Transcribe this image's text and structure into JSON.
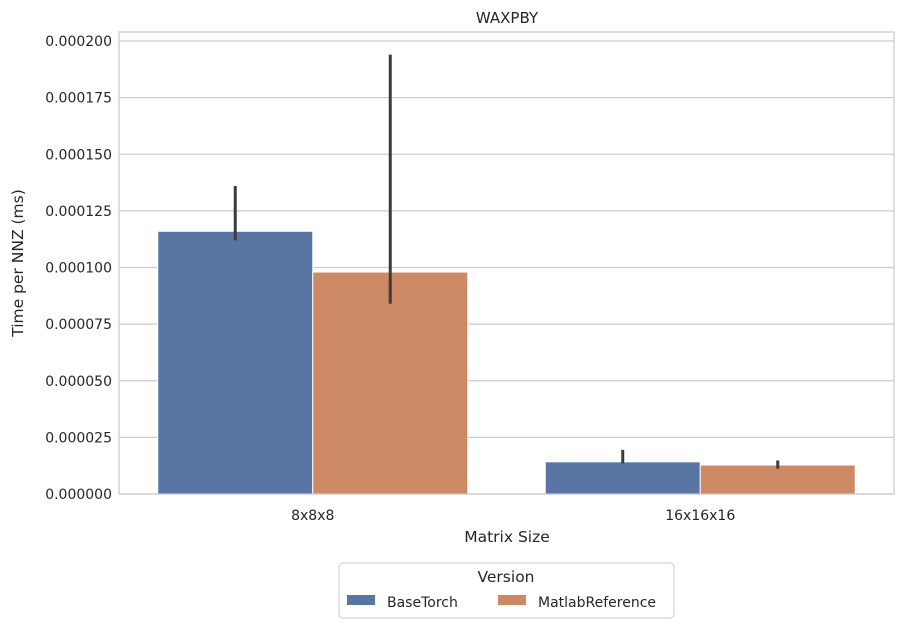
{
  "chart_data": {
    "type": "bar",
    "title": "WAXPBY",
    "xlabel": "Matrix Size",
    "ylabel": "Time per NNZ (ms)",
    "categories": [
      "8x8x8",
      "16x16x16"
    ],
    "ylim": [
      0,
      0.000204
    ],
    "yticks": [
      "0.000000",
      "0.000025",
      "0.000050",
      "0.000075",
      "0.000100",
      "0.000125",
      "0.000150",
      "0.000175",
      "0.000200"
    ],
    "ytick_values": [
      0,
      2.5e-05,
      5e-05,
      7.5e-05,
      0.0001,
      0.000125,
      0.00015,
      0.000175,
      0.0002
    ],
    "grid": true,
    "legend": {
      "title": "Version",
      "placement": "bottom-center"
    },
    "series": [
      {
        "name": "BaseTorch",
        "color": "#5875a4",
        "values": [
          0.000116,
          1.42e-05
        ],
        "error_low": [
          0.000112,
          1.35e-05
        ],
        "error_high": [
          0.000136,
          1.95e-05
        ]
      },
      {
        "name": "MatlabReference",
        "color": "#cc8963",
        "values": [
          9.8e-05,
          1.28e-05
        ],
        "error_low": [
          8.4e-05,
          1.12e-05
        ],
        "error_high": [
          0.000194,
          1.48e-05
        ]
      }
    ]
  }
}
